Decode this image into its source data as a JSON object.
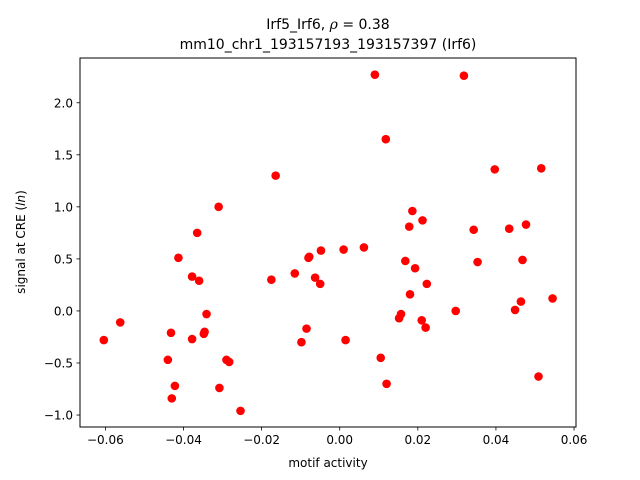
{
  "chart_data": {
    "type": "scatter",
    "title_line1_prefix": "Irf5_Irf6, ",
    "title_line1_rho": "ρ",
    "title_line1_suffix": " = 0.38",
    "title_line2": "mm10_chr1_193157193_193157397 (Irf6)",
    "xlabel": "motif activity",
    "ylabel_prefix": "signal at CRE (",
    "ylabel_italic": "ln",
    "ylabel_suffix": ")",
    "xlim": [
      -0.0665,
      0.0605
    ],
    "ylim": [
      -1.115,
      2.43
    ],
    "xticks": [
      -0.06,
      -0.04,
      -0.02,
      0.0,
      0.02,
      0.04,
      0.06
    ],
    "xtick_labels": [
      "−0.06",
      "−0.04",
      "−0.02",
      "0.00",
      "0.02",
      "0.04",
      "0.06"
    ],
    "yticks": [
      -1.0,
      -0.5,
      0.0,
      0.5,
      1.0,
      1.5,
      2.0
    ],
    "ytick_labels": [
      "−1.0",
      "−0.5",
      "0.0",
      "0.5",
      "1.0",
      "1.5",
      "2.0"
    ],
    "grid": false,
    "marker_color": "#ff0000",
    "points": [
      {
        "x": -0.0604,
        "y": -0.28
      },
      {
        "x": -0.0562,
        "y": -0.11
      },
      {
        "x": -0.044,
        "y": -0.47
      },
      {
        "x": -0.0432,
        "y": -0.21
      },
      {
        "x": -0.043,
        "y": -0.84
      },
      {
        "x": -0.0422,
        "y": -0.72
      },
      {
        "x": -0.0413,
        "y": 0.51
      },
      {
        "x": -0.0378,
        "y": 0.33
      },
      {
        "x": -0.0378,
        "y": -0.27
      },
      {
        "x": -0.0365,
        "y": 0.75
      },
      {
        "x": -0.036,
        "y": 0.29
      },
      {
        "x": -0.0348,
        "y": -0.22
      },
      {
        "x": -0.0346,
        "y": -0.2
      },
      {
        "x": -0.0341,
        "y": -0.03
      },
      {
        "x": -0.031,
        "y": 1.0
      },
      {
        "x": -0.0308,
        "y": -0.74
      },
      {
        "x": -0.029,
        "y": -0.47
      },
      {
        "x": -0.0283,
        "y": -0.49
      },
      {
        "x": -0.0254,
        "y": -0.96
      },
      {
        "x": -0.0175,
        "y": 0.3
      },
      {
        "x": -0.0164,
        "y": 1.3
      },
      {
        "x": -0.0115,
        "y": 0.36
      },
      {
        "x": -0.0098,
        "y": -0.3
      },
      {
        "x": -0.0085,
        "y": -0.17
      },
      {
        "x": -0.008,
        "y": 0.51
      },
      {
        "x": -0.0078,
        "y": 0.52
      },
      {
        "x": -0.0063,
        "y": 0.32
      },
      {
        "x": -0.005,
        "y": 0.26
      },
      {
        "x": -0.0048,
        "y": 0.58
      },
      {
        "x": 0.001,
        "y": 0.59
      },
      {
        "x": 0.0015,
        "y": -0.28
      },
      {
        "x": 0.0062,
        "y": 0.61
      },
      {
        "x": 0.009,
        "y": 2.27
      },
      {
        "x": 0.0105,
        "y": -0.45
      },
      {
        "x": 0.0118,
        "y": 1.65
      },
      {
        "x": 0.012,
        "y": -0.7
      },
      {
        "x": 0.0152,
        "y": -0.07
      },
      {
        "x": 0.0157,
        "y": -0.03
      },
      {
        "x": 0.0168,
        "y": 0.48
      },
      {
        "x": 0.0178,
        "y": 0.81
      },
      {
        "x": 0.018,
        "y": 0.16
      },
      {
        "x": 0.0186,
        "y": 0.96
      },
      {
        "x": 0.0193,
        "y": 0.41
      },
      {
        "x": 0.021,
        "y": -0.09
      },
      {
        "x": 0.0212,
        "y": 0.87
      },
      {
        "x": 0.022,
        "y": -0.16
      },
      {
        "x": 0.0223,
        "y": 0.26
      },
      {
        "x": 0.0297,
        "y": 0.0
      },
      {
        "x": 0.0318,
        "y": 2.26
      },
      {
        "x": 0.0343,
        "y": 0.78
      },
      {
        "x": 0.0353,
        "y": 0.47
      },
      {
        "x": 0.0397,
        "y": 1.36
      },
      {
        "x": 0.0434,
        "y": 0.79
      },
      {
        "x": 0.0449,
        "y": 0.01
      },
      {
        "x": 0.0464,
        "y": 0.09
      },
      {
        "x": 0.0468,
        "y": 0.49
      },
      {
        "x": 0.0477,
        "y": 0.83
      },
      {
        "x": 0.0509,
        "y": -0.63
      },
      {
        "x": 0.0516,
        "y": 1.37
      },
      {
        "x": 0.0545,
        "y": 0.12
      }
    ]
  }
}
